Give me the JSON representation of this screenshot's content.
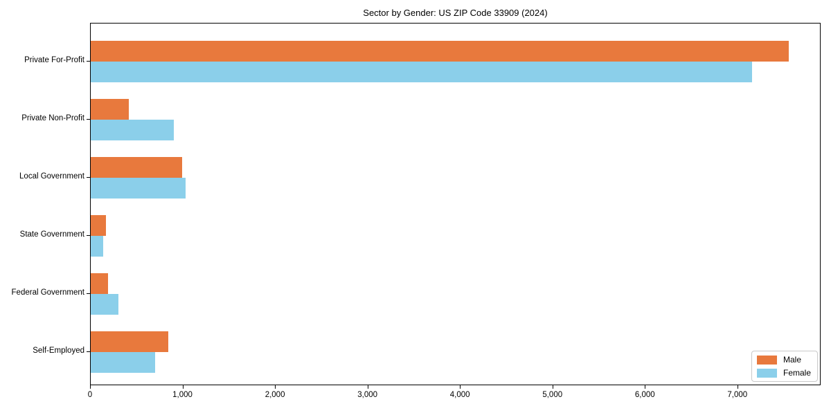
{
  "chart_data": {
    "type": "bar",
    "orientation": "horizontal",
    "title": "Sector by Gender: US ZIP Code 33909 (2024)",
    "categories": [
      "Private For-Profit",
      "Private Non-Profit",
      "Local Government",
      "State Government",
      "Federal Government",
      "Self-Employed"
    ],
    "series": [
      {
        "name": "Male",
        "color": "#E8793D",
        "values": [
          7550,
          410,
          985,
          165,
          190,
          835
        ]
      },
      {
        "name": "Female",
        "color": "#8BCFEA",
        "values": [
          7150,
          900,
          1025,
          135,
          300,
          700
        ]
      }
    ],
    "xlabel": "",
    "ylabel": "",
    "xlim": [
      0,
      7900
    ],
    "x_ticks": [
      0,
      1000,
      2000,
      3000,
      4000,
      5000,
      6000,
      7000
    ],
    "x_tick_labels": [
      "0",
      "1,000",
      "2,000",
      "3,000",
      "4,000",
      "5,000",
      "6,000",
      "7,000"
    ],
    "grid": false,
    "legend_position": "lower right",
    "background_color": "#ffffff",
    "text_color": "#000000"
  }
}
